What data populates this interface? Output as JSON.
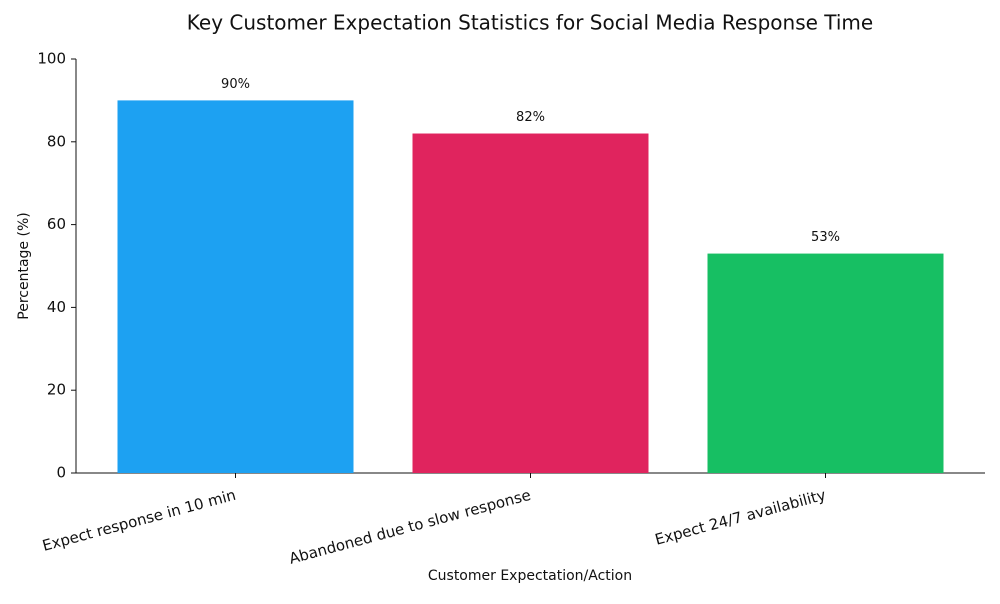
{
  "chart_data": {
    "type": "bar",
    "title": "Key Customer Expectation Statistics for Social Media Response Time",
    "x_label": "Customer Expectation/Action",
    "y_label": "Percentage (%)",
    "categories": [
      "Expect response in 10 min",
      "Abandoned due to slow response",
      "Expect 24/7 availability"
    ],
    "values": [
      90,
      82,
      53
    ],
    "value_labels": [
      "90%",
      "82%",
      "53%"
    ],
    "colors": [
      "#1da1f2",
      "#e0245e",
      "#17bf63"
    ],
    "ylim": [
      0,
      100
    ],
    "yticks": [
      0,
      20,
      40,
      60,
      80,
      100
    ],
    "grid": false
  }
}
